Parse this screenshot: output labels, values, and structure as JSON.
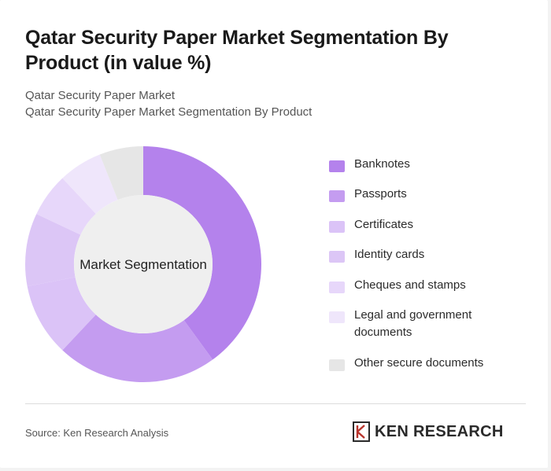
{
  "header": {
    "title": "Qatar Security Paper Market Segmentation By Product (in value %)",
    "subtitle_line1": "Qatar Security Paper Market",
    "subtitle_line2": "Qatar Security Paper Market Segmentation By Product"
  },
  "chart_data": {
    "type": "pie",
    "variant": "donut",
    "center_label": "Market Segmentation",
    "categories": [
      "Banknotes",
      "Passports",
      "Certificates",
      "Identity cards",
      "Cheques and stamps",
      "Legal and government documents",
      "Other secure documents"
    ],
    "values": [
      40,
      22,
      10,
      10,
      6,
      6,
      6
    ],
    "colors": [
      "#b482ec",
      "#c49cf0",
      "#dbc3f7",
      "#dcc6f6",
      "#e7d7fa",
      "#efe6fb",
      "#e6e6e6"
    ],
    "legend_position": "right"
  },
  "footer": {
    "source": "Source: Ken Research Analysis",
    "logo_text": "KEN RESEARCH"
  }
}
